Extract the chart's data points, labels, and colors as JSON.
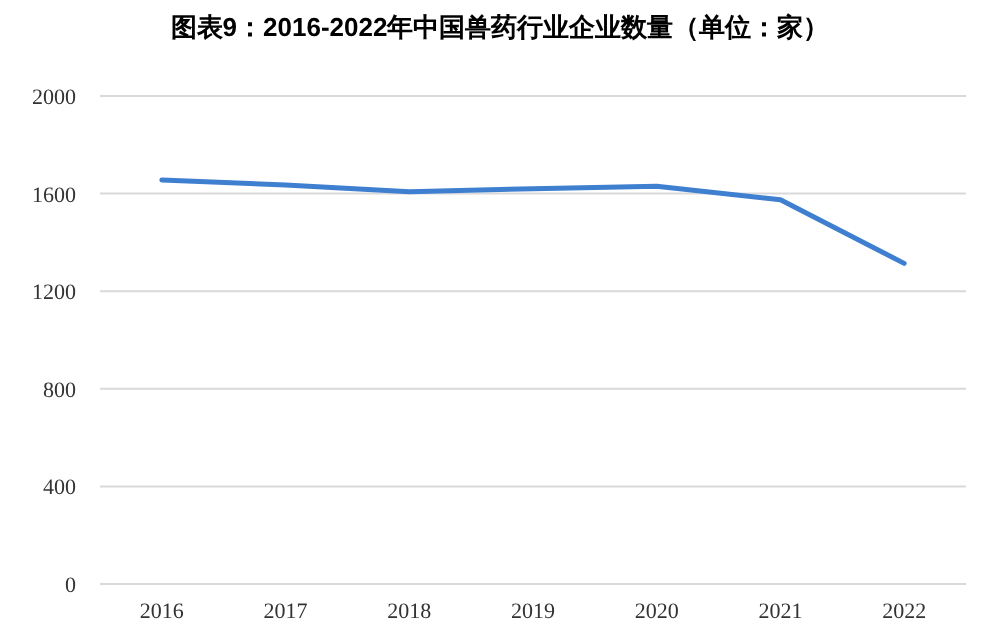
{
  "chart_data": {
    "type": "line",
    "title": "图表9：2016-2022年中国兽药行业企业数量（单位：家）",
    "categories": [
      "2016",
      "2017",
      "2018",
      "2019",
      "2020",
      "2021",
      "2022"
    ],
    "series": [
      {
        "color": "#3f7fcf",
        "values": [
          1656,
          1635,
          1608,
          1620,
          1630,
          1575,
          1314
        ]
      }
    ],
    "ylim": [
      0,
      2000
    ],
    "yticks": [
      0,
      400,
      800,
      1200,
      1600,
      2000
    ],
    "grid": "y",
    "marker": "none",
    "line_style": "solid"
  }
}
